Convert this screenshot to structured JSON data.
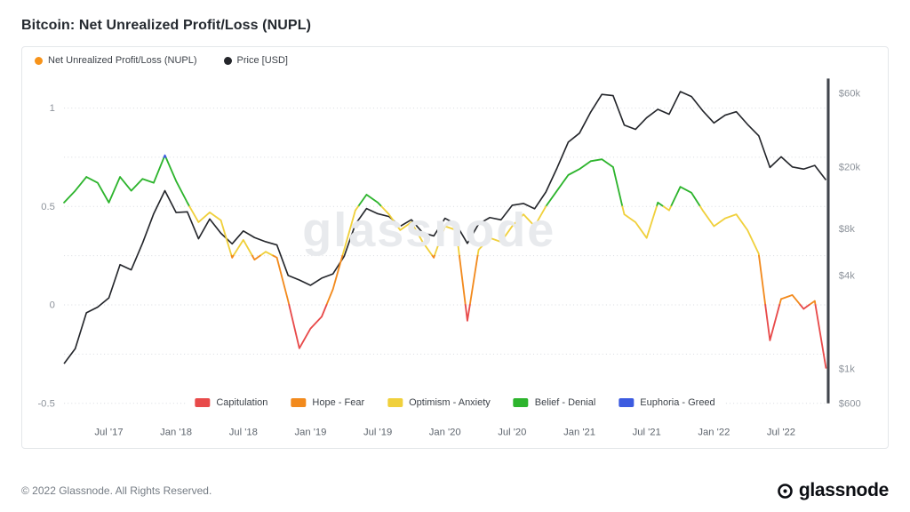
{
  "page": {
    "title": "Bitcoin: Net Unrealized Profit/Loss (NUPL)",
    "footer_copyright": "© 2022 Glassnode. All Rights Reserved.",
    "brand": "glassnode",
    "watermark": "glassnode"
  },
  "legend": {
    "series": [
      {
        "label": "Net Unrealized Profit/Loss (NUPL)",
        "color": "#f7931a"
      },
      {
        "label": "Price [USD]",
        "color": "#24262b"
      }
    ]
  },
  "chart_data": {
    "type": "line",
    "title": "Bitcoin: Net Unrealized Profit/Loss (NUPL)",
    "x_unit": "month",
    "dates": [
      "2017-03",
      "2017-04",
      "2017-05",
      "2017-06",
      "2017-07",
      "2017-08",
      "2017-09",
      "2017-10",
      "2017-11",
      "2017-12",
      "2018-01",
      "2018-02",
      "2018-03",
      "2018-04",
      "2018-05",
      "2018-06",
      "2018-07",
      "2018-08",
      "2018-09",
      "2018-10",
      "2018-11",
      "2018-12",
      "2019-01",
      "2019-02",
      "2019-03",
      "2019-04",
      "2019-05",
      "2019-06",
      "2019-07",
      "2019-08",
      "2019-09",
      "2019-10",
      "2019-11",
      "2019-12",
      "2020-01",
      "2020-02",
      "2020-03",
      "2020-04",
      "2020-05",
      "2020-06",
      "2020-07",
      "2020-08",
      "2020-09",
      "2020-10",
      "2020-11",
      "2020-12",
      "2021-01",
      "2021-02",
      "2021-03",
      "2021-04",
      "2021-05",
      "2021-06",
      "2021-07",
      "2021-08",
      "2021-09",
      "2021-10",
      "2021-11",
      "2021-12",
      "2022-01",
      "2022-02",
      "2022-03",
      "2022-04",
      "2022-05",
      "2022-06",
      "2022-07",
      "2022-08",
      "2022-09",
      "2022-10",
      "2022-11"
    ],
    "series": [
      {
        "name": "Net Unrealized Profit/Loss (NUPL)",
        "axis": "left",
        "scale": "linear",
        "values": [
          0.52,
          0.58,
          0.65,
          0.62,
          0.52,
          0.65,
          0.58,
          0.64,
          0.62,
          0.76,
          0.63,
          0.52,
          0.42,
          0.47,
          0.43,
          0.24,
          0.33,
          0.23,
          0.27,
          0.24,
          0.02,
          -0.22,
          -0.12,
          -0.06,
          0.08,
          0.28,
          0.48,
          0.56,
          0.52,
          0.46,
          0.38,
          0.42,
          0.32,
          0.24,
          0.4,
          0.38,
          -0.08,
          0.28,
          0.34,
          0.32,
          0.4,
          0.46,
          0.4,
          0.5,
          0.58,
          0.66,
          0.69,
          0.73,
          0.74,
          0.7,
          0.46,
          0.42,
          0.34,
          0.52,
          0.48,
          0.6,
          0.57,
          0.48,
          0.4,
          0.44,
          0.46,
          0.38,
          0.26,
          -0.18,
          0.03,
          0.05,
          -0.02,
          0.02,
          -0.32
        ]
      },
      {
        "name": "Price [USD]",
        "axis": "right",
        "scale": "log",
        "color": "#24262b",
        "values": [
          1080,
          1350,
          2300,
          2500,
          2870,
          4700,
          4350,
          6450,
          10000,
          14100,
          10200,
          10300,
          6900,
          9250,
          7500,
          6400,
          7750,
          7030,
          6600,
          6300,
          4000,
          3740,
          3460,
          3850,
          4100,
          5320,
          8560,
          10800,
          10000,
          9600,
          8300,
          9150,
          7550,
          7200,
          9350,
          8550,
          6440,
          8600,
          9450,
          9140,
          11350,
          11650,
          10780,
          13800,
          19700,
          29000,
          33100,
          45200,
          58800,
          57800,
          37300,
          35000,
          41600,
          47100,
          43800,
          61300,
          57000,
          46200,
          38500,
          43200,
          45500,
          37700,
          31800,
          19900,
          23300,
          20050,
          19400,
          20500,
          16500
        ]
      }
    ],
    "bands": [
      {
        "label": "Capitulation",
        "range": [
          null,
          0
        ],
        "color": "#e84a4a"
      },
      {
        "label": "Hope - Fear",
        "range": [
          0,
          0.25
        ],
        "color": "#f28a1d"
      },
      {
        "label": "Optimism - Anxiety",
        "range": [
          0.25,
          0.5
        ],
        "color": "#f0d03c"
      },
      {
        "label": "Belief - Denial",
        "range": [
          0.5,
          0.75
        ],
        "color": "#2db42d"
      },
      {
        "label": "Euphoria - Greed",
        "range": [
          0.75,
          null
        ],
        "color": "#3c5be0"
      }
    ],
    "axes": {
      "left": {
        "range": [
          -0.55,
          1.15
        ],
        "gridlines": [
          1,
          0.75,
          0.5,
          0.25,
          0,
          -0.25,
          -0.5
        ],
        "ticks": [
          {
            "v": 1,
            "label": "1"
          },
          {
            "v": 0.5,
            "label": "0.5"
          },
          {
            "v": 0,
            "label": "0"
          },
          {
            "v": -0.5,
            "label": "-0.5"
          }
        ]
      },
      "right": {
        "scale": "log",
        "ticks": [
          {
            "v": 60000,
            "label": "$60k"
          },
          {
            "v": 20000,
            "label": "$20k"
          },
          {
            "v": 8000,
            "label": "$8k"
          },
          {
            "v": 4000,
            "label": "$4k"
          },
          {
            "v": 1000,
            "label": "$1k"
          },
          {
            "v": 600,
            "label": "$600"
          }
        ]
      },
      "x": {
        "ticks": [
          {
            "i": 4,
            "label": "Jul '17"
          },
          {
            "i": 10,
            "label": "Jan '18"
          },
          {
            "i": 16,
            "label": "Jul '18"
          },
          {
            "i": 22,
            "label": "Jan '19"
          },
          {
            "i": 28,
            "label": "Jul '19"
          },
          {
            "i": 34,
            "label": "Jan '20"
          },
          {
            "i": 40,
            "label": "Jul '20"
          },
          {
            "i": 46,
            "label": "Jan '21"
          },
          {
            "i": 52,
            "label": "Jul '21"
          },
          {
            "i": 58,
            "label": "Jan '22"
          },
          {
            "i": 64,
            "label": "Jul '22"
          }
        ]
      }
    }
  }
}
